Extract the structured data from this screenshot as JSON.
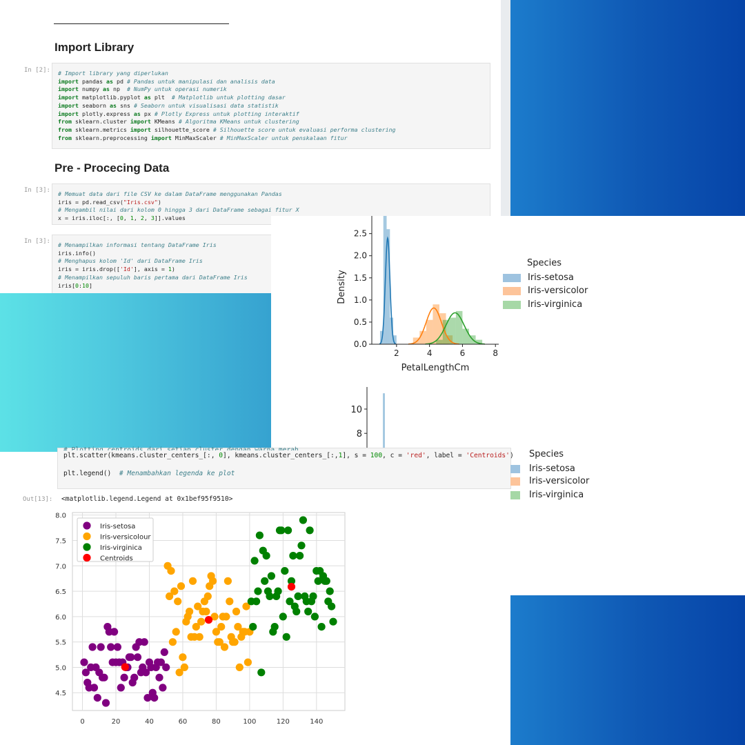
{
  "notebook": {
    "section1": {
      "title": "Import Library"
    },
    "section2": {
      "title": "Pre - Procecing Data"
    },
    "cell1": {
      "prompt": "In [2]:",
      "lines": [
        "# Import library yang diperlukan",
        "import pandas as pd # Pandas untuk manipulasi dan analisis data",
        "import numpy as np  # NumPy untuk operasi numerik",
        "import matplotlib.pyplot as plt  # Matplotlib untuk plotting dasar",
        "import seaborn as sns # Seaborn untuk visualisasi data statistik",
        "import plotly.express as px # Plotly Express untuk plotting interaktif",
        "from sklearn.cluster import KMeans # Algoritma KMeans untuk clustering",
        "from sklearn.metrics import silhouette_score # Silhouette score untuk evaluasi performa clustering",
        "from sklearn.preprocessing import MinMaxScaler # MinMaxScaler untuk penskalaan fitur"
      ]
    },
    "cell2": {
      "prompt": "In [3]:",
      "lines": [
        "# Memuat data dari file CSV ke dalam DataFrame menggunakan Pandas",
        "iris = pd.read_csv(\"Iris.csv\")",
        "# Mengambil nilai dari kolom 0 hingga 3 dari DataFrame sebagai fitur X",
        "x = iris.iloc[:, [0, 1, 2, 3]].values"
      ]
    },
    "cell3": {
      "prompt": "In [3]:",
      "lines": [
        "# Menampilkan informasi tentang DataFrame Iris",
        "iris.info()",
        "# Menghapus kolom 'Id' dari DataFrame Iris",
        "iris = iris.drop(['Id'], axis = 1)",
        "# Menampilkan sepuluh baris pertama dari DataFrame Iris",
        "iris[0:10]"
      ]
    },
    "cell4": {
      "line_partial": "# Plotting centroids dari setiap cluster dengan warna merah",
      "line1": "plt.scatter(kmeans.cluster_centers_[:, 0], kmeans.cluster_centers_[:,1], s = 100, c = 'red', label = 'Centroids')",
      "line2": "plt.legend()  # Menambahkan legenda ke plot"
    },
    "output": {
      "prompt": "Out[13]:",
      "text": "<matplotlib.legend.Legend at 0x1bef95f9510>"
    }
  },
  "density_chart": {
    "legend_title": "Species",
    "legend_items": [
      "Iris-setosa",
      "Iris-versicolor",
      "Iris-virginica"
    ],
    "colors": {
      "setosa": "#1f77b4",
      "versicolor": "#ff7f0e",
      "virginica": "#2ca02c"
    }
  },
  "density_chart_2": {
    "legend_title": "Species",
    "legend_items": [
      "Iris-setosa",
      "Iris-versicolor",
      "Iris-virginica"
    ]
  },
  "chart_data": [
    {
      "type": "area",
      "xlabel": "PetalLengthCm",
      "ylabel": "Density",
      "xlim": [
        0.5,
        8.2
      ],
      "ylim": [
        0,
        2.9
      ],
      "xticks": [
        2,
        4,
        6,
        8
      ],
      "yticks": [
        0.0,
        0.5,
        1.0,
        1.5,
        2.0,
        2.5
      ],
      "legend": "right",
      "series": [
        {
          "name": "Iris-setosa",
          "mean": 1.46,
          "sd": 0.14,
          "peak": 2.4,
          "hist": [
            [
              1.0,
              1.2,
              0.3
            ],
            [
              1.2,
              1.4,
              2.9
            ],
            [
              1.4,
              1.6,
              2.6
            ],
            [
              1.6,
              1.8,
              0.6
            ],
            [
              1.8,
              2.0,
              0.2
            ]
          ]
        },
        {
          "name": "Iris-versicolor",
          "mean": 4.26,
          "sd": 0.46,
          "peak": 0.82,
          "hist": [
            [
              3.0,
              3.4,
              0.15
            ],
            [
              3.4,
              3.8,
              0.3
            ],
            [
              3.8,
              4.2,
              0.55
            ],
            [
              4.2,
              4.6,
              0.9
            ],
            [
              4.6,
              5.0,
              0.7
            ],
            [
              5.0,
              5.4,
              0.2
            ]
          ]
        },
        {
          "name": "Iris-virginica",
          "mean": 5.55,
          "sd": 0.55,
          "peak": 0.71,
          "hist": [
            [
              4.4,
              4.8,
              0.1
            ],
            [
              4.8,
              5.2,
              0.55
            ],
            [
              5.2,
              5.6,
              0.6
            ],
            [
              5.6,
              6.0,
              0.75
            ],
            [
              6.0,
              6.4,
              0.35
            ],
            [
              6.4,
              6.8,
              0.2
            ],
            [
              6.8,
              7.2,
              0.1
            ]
          ]
        }
      ]
    },
    {
      "type": "bar",
      "ylabel": "",
      "yticks": [
        8,
        10
      ],
      "ylim": [
        6.5,
        11.5
      ],
      "series": [
        {
          "name": "Iris-setosa",
          "x": 1.4,
          "value": 11.3
        }
      ]
    },
    {
      "type": "scatter",
      "xlim": [
        -6,
        157
      ],
      "ylim": [
        4.15,
        8.05
      ],
      "xticks": [
        0,
        20,
        40,
        60,
        80,
        100,
        120,
        140
      ],
      "yticks": [
        4.5,
        5.0,
        5.5,
        6.0,
        6.5,
        7.0,
        7.5,
        8.0
      ],
      "grid": true,
      "legend": "top-left",
      "series": [
        {
          "name": "Iris-setosa",
          "color": "#800080",
          "points": [
            [
              1,
              5.1
            ],
            [
              2,
              4.9
            ],
            [
              3,
              4.7
            ],
            [
              4,
              4.6
            ],
            [
              5,
              5.0
            ],
            [
              6,
              5.4
            ],
            [
              7,
              4.6
            ],
            [
              8,
              5.0
            ],
            [
              9,
              4.4
            ],
            [
              10,
              4.9
            ],
            [
              11,
              5.4
            ],
            [
              12,
              4.8
            ],
            [
              13,
              4.8
            ],
            [
              14,
              4.3
            ],
            [
              15,
              5.8
            ],
            [
              16,
              5.7
            ],
            [
              17,
              5.4
            ],
            [
              18,
              5.1
            ],
            [
              19,
              5.7
            ],
            [
              20,
              5.1
            ],
            [
              21,
              5.4
            ],
            [
              22,
              5.1
            ],
            [
              23,
              4.6
            ],
            [
              24,
              5.1
            ],
            [
              25,
              4.8
            ],
            [
              26,
              5.0
            ],
            [
              27,
              5.0
            ],
            [
              28,
              5.2
            ],
            [
              29,
              5.2
            ],
            [
              30,
              4.7
            ],
            [
              31,
              4.8
            ],
            [
              32,
              5.4
            ],
            [
              33,
              5.2
            ],
            [
              34,
              5.5
            ],
            [
              35,
              4.9
            ],
            [
              36,
              5.0
            ],
            [
              37,
              5.5
            ],
            [
              38,
              4.9
            ],
            [
              39,
              4.4
            ],
            [
              40,
              5.1
            ],
            [
              41,
              5.0
            ],
            [
              42,
              4.5
            ],
            [
              43,
              4.4
            ],
            [
              44,
              5.0
            ],
            [
              45,
              5.1
            ],
            [
              46,
              4.8
            ],
            [
              47,
              5.1
            ],
            [
              48,
              4.6
            ],
            [
              49,
              5.3
            ],
            [
              50,
              5.0
            ]
          ]
        },
        {
          "name": "Iris-versicolour",
          "color": "#ffa500",
          "points": [
            [
              51,
              7.0
            ],
            [
              52,
              6.4
            ],
            [
              53,
              6.9
            ],
            [
              54,
              5.5
            ],
            [
              55,
              6.5
            ],
            [
              56,
              5.7
            ],
            [
              57,
              6.3
            ],
            [
              58,
              4.9
            ],
            [
              59,
              6.6
            ],
            [
              60,
              5.2
            ],
            [
              61,
              5.0
            ],
            [
              62,
              5.9
            ],
            [
              63,
              6.0
            ],
            [
              64,
              6.1
            ],
            [
              65,
              5.6
            ],
            [
              66,
              6.7
            ],
            [
              67,
              5.6
            ],
            [
              68,
              5.8
            ],
            [
              69,
              6.2
            ],
            [
              70,
              5.6
            ],
            [
              71,
              5.9
            ],
            [
              72,
              6.1
            ],
            [
              73,
              6.3
            ],
            [
              74,
              6.1
            ],
            [
              75,
              6.4
            ],
            [
              76,
              6.6
            ],
            [
              77,
              6.8
            ],
            [
              78,
              6.7
            ],
            [
              79,
              6.0
            ],
            [
              80,
              5.7
            ],
            [
              81,
              5.5
            ],
            [
              82,
              5.5
            ],
            [
              83,
              5.8
            ],
            [
              84,
              6.0
            ],
            [
              85,
              5.4
            ],
            [
              86,
              6.0
            ],
            [
              87,
              6.7
            ],
            [
              88,
              6.3
            ],
            [
              89,
              5.6
            ],
            [
              90,
              5.5
            ],
            [
              91,
              5.5
            ],
            [
              92,
              6.1
            ],
            [
              93,
              5.8
            ],
            [
              94,
              5.0
            ],
            [
              95,
              5.6
            ],
            [
              96,
              5.7
            ],
            [
              97,
              5.7
            ],
            [
              98,
              6.2
            ],
            [
              99,
              5.1
            ],
            [
              100,
              5.7
            ]
          ]
        },
        {
          "name": "Iris-virginica",
          "color": "#008000",
          "points": [
            [
              101,
              6.3
            ],
            [
              102,
              5.8
            ],
            [
              103,
              7.1
            ],
            [
              104,
              6.3
            ],
            [
              105,
              6.5
            ],
            [
              106,
              7.6
            ],
            [
              107,
              4.9
            ],
            [
              108,
              7.3
            ],
            [
              109,
              6.7
            ],
            [
              110,
              7.2
            ],
            [
              111,
              6.5
            ],
            [
              112,
              6.4
            ],
            [
              113,
              6.8
            ],
            [
              114,
              5.7
            ],
            [
              115,
              5.8
            ],
            [
              116,
              6.4
            ],
            [
              117,
              6.5
            ],
            [
              118,
              7.7
            ],
            [
              119,
              7.7
            ],
            [
              120,
              6.0
            ],
            [
              121,
              6.9
            ],
            [
              122,
              5.6
            ],
            [
              123,
              7.7
            ],
            [
              124,
              6.3
            ],
            [
              125,
              6.7
            ],
            [
              126,
              7.2
            ],
            [
              127,
              6.2
            ],
            [
              128,
              6.1
            ],
            [
              129,
              6.4
            ],
            [
              130,
              7.2
            ],
            [
              131,
              7.4
            ],
            [
              132,
              7.9
            ],
            [
              133,
              6.4
            ],
            [
              134,
              6.3
            ],
            [
              135,
              6.1
            ],
            [
              136,
              7.7
            ],
            [
              137,
              6.3
            ],
            [
              138,
              6.4
            ],
            [
              139,
              6.0
            ],
            [
              140,
              6.9
            ],
            [
              141,
              6.7
            ],
            [
              142,
              6.9
            ],
            [
              143,
              5.8
            ],
            [
              144,
              6.8
            ],
            [
              145,
              6.7
            ],
            [
              146,
              6.7
            ],
            [
              147,
              6.3
            ],
            [
              148,
              6.5
            ],
            [
              149,
              6.2
            ],
            [
              150,
              5.9
            ]
          ]
        },
        {
          "name": "Centroids",
          "color": "#ff0000",
          "points": [
            [
              25.5,
              5.006
            ],
            [
              75.5,
              5.936
            ],
            [
              125.0,
              6.588
            ]
          ]
        }
      ]
    }
  ]
}
